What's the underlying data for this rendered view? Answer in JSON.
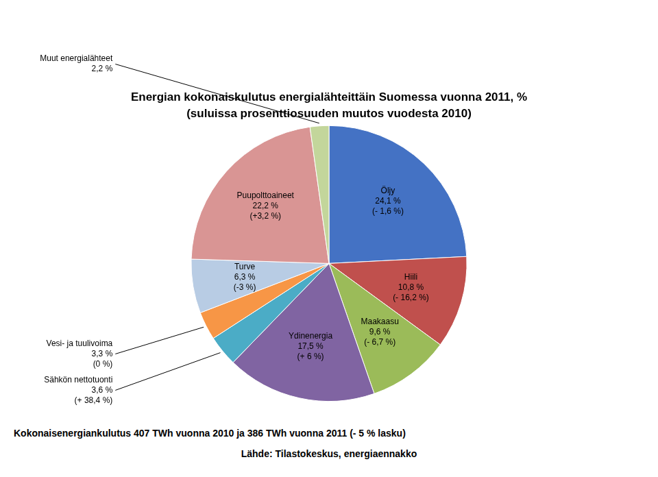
{
  "chart_data": {
    "type": "pie",
    "title": "Energian kokonaiskulutus energialähteittäin Suomessa vuonna 2011, %",
    "subtitle": "(suluissa prosenttiosuuden muutos vuodesta 2010)",
    "categories": [
      "Öljy\n24,1 %\n(- 1,6 %)",
      "Hiili\n10,8 %\n(- 16,2 %)",
      "Maakaasu\n9,6 %\n(- 6,7 %)",
      "Ydinenergia\n17,5 %\n(+ 6 %)",
      "Sähkön nettotuonti\n3,6 %\n(+ 38,4 %)",
      "Vesi- ja tuulivoima\n3,3 %\n(0 %)",
      "Turve\n6,3 %\n(-3 %)",
      "Puupolttoaineet\n22,2 %\n(+3,2 %)",
      "Muut energialähteet\n2,2 %"
    ],
    "values": [
      24.1,
      10.8,
      9.6,
      17.5,
      3.6,
      3.3,
      6.3,
      22.2,
      2.2
    ],
    "colors": [
      "#4472C4",
      "#C0504D",
      "#9BBB59",
      "#8064A2",
      "#4BACC6",
      "#F79646",
      "#B8CCE4",
      "#D99594",
      "#C3D69B"
    ],
    "annotations": [
      "Kokonaisenergiankulutus 407 TWh vuonna 2010 ja 386 TWh vuonna 2011   (- 5 % lasku)",
      "Lähde: Tilastokeskus, energiaennakko"
    ]
  }
}
